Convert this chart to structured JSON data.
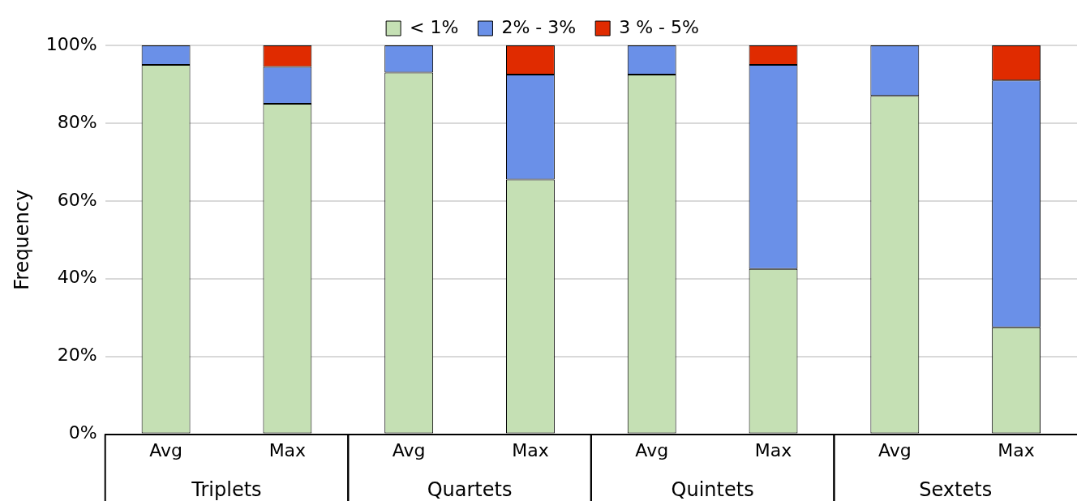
{
  "chart_data": {
    "type": "bar",
    "stacked": true,
    "ylabel": "Frequency",
    "categories": [
      "Avg",
      "Max",
      "Avg",
      "Max",
      "Avg",
      "Max",
      "Avg",
      "Max"
    ],
    "annotations": [
      "Triplets",
      "Quartets",
      "Quintets",
      "Sextets"
    ],
    "series": [
      {
        "name": "< 1%",
        "color": "#c5e0b4",
        "values": [
          95,
          85,
          93,
          65.5,
          92.5,
          42.5,
          87,
          27.5
        ]
      },
      {
        "name": "2% - 3%",
        "color": "#6a90e8",
        "values": [
          5,
          9.5,
          7,
          27,
          7.5,
          52.5,
          13,
          63.5
        ]
      },
      {
        "name": "3 % - 5%",
        "color": "#e02b00",
        "values": [
          null,
          5.5,
          null,
          7.5,
          null,
          5,
          null,
          9
        ]
      }
    ],
    "ylim": [
      0,
      100
    ],
    "yticks": [
      {
        "value": 0,
        "label": "0%"
      },
      {
        "value": 20,
        "label": "20%"
      },
      {
        "value": 40,
        "label": "40%"
      },
      {
        "value": 60,
        "label": "60%"
      },
      {
        "value": 80,
        "label": "80%"
      },
      {
        "value": 100,
        "label": "100%"
      }
    ],
    "grid": "y",
    "legend": "top"
  }
}
